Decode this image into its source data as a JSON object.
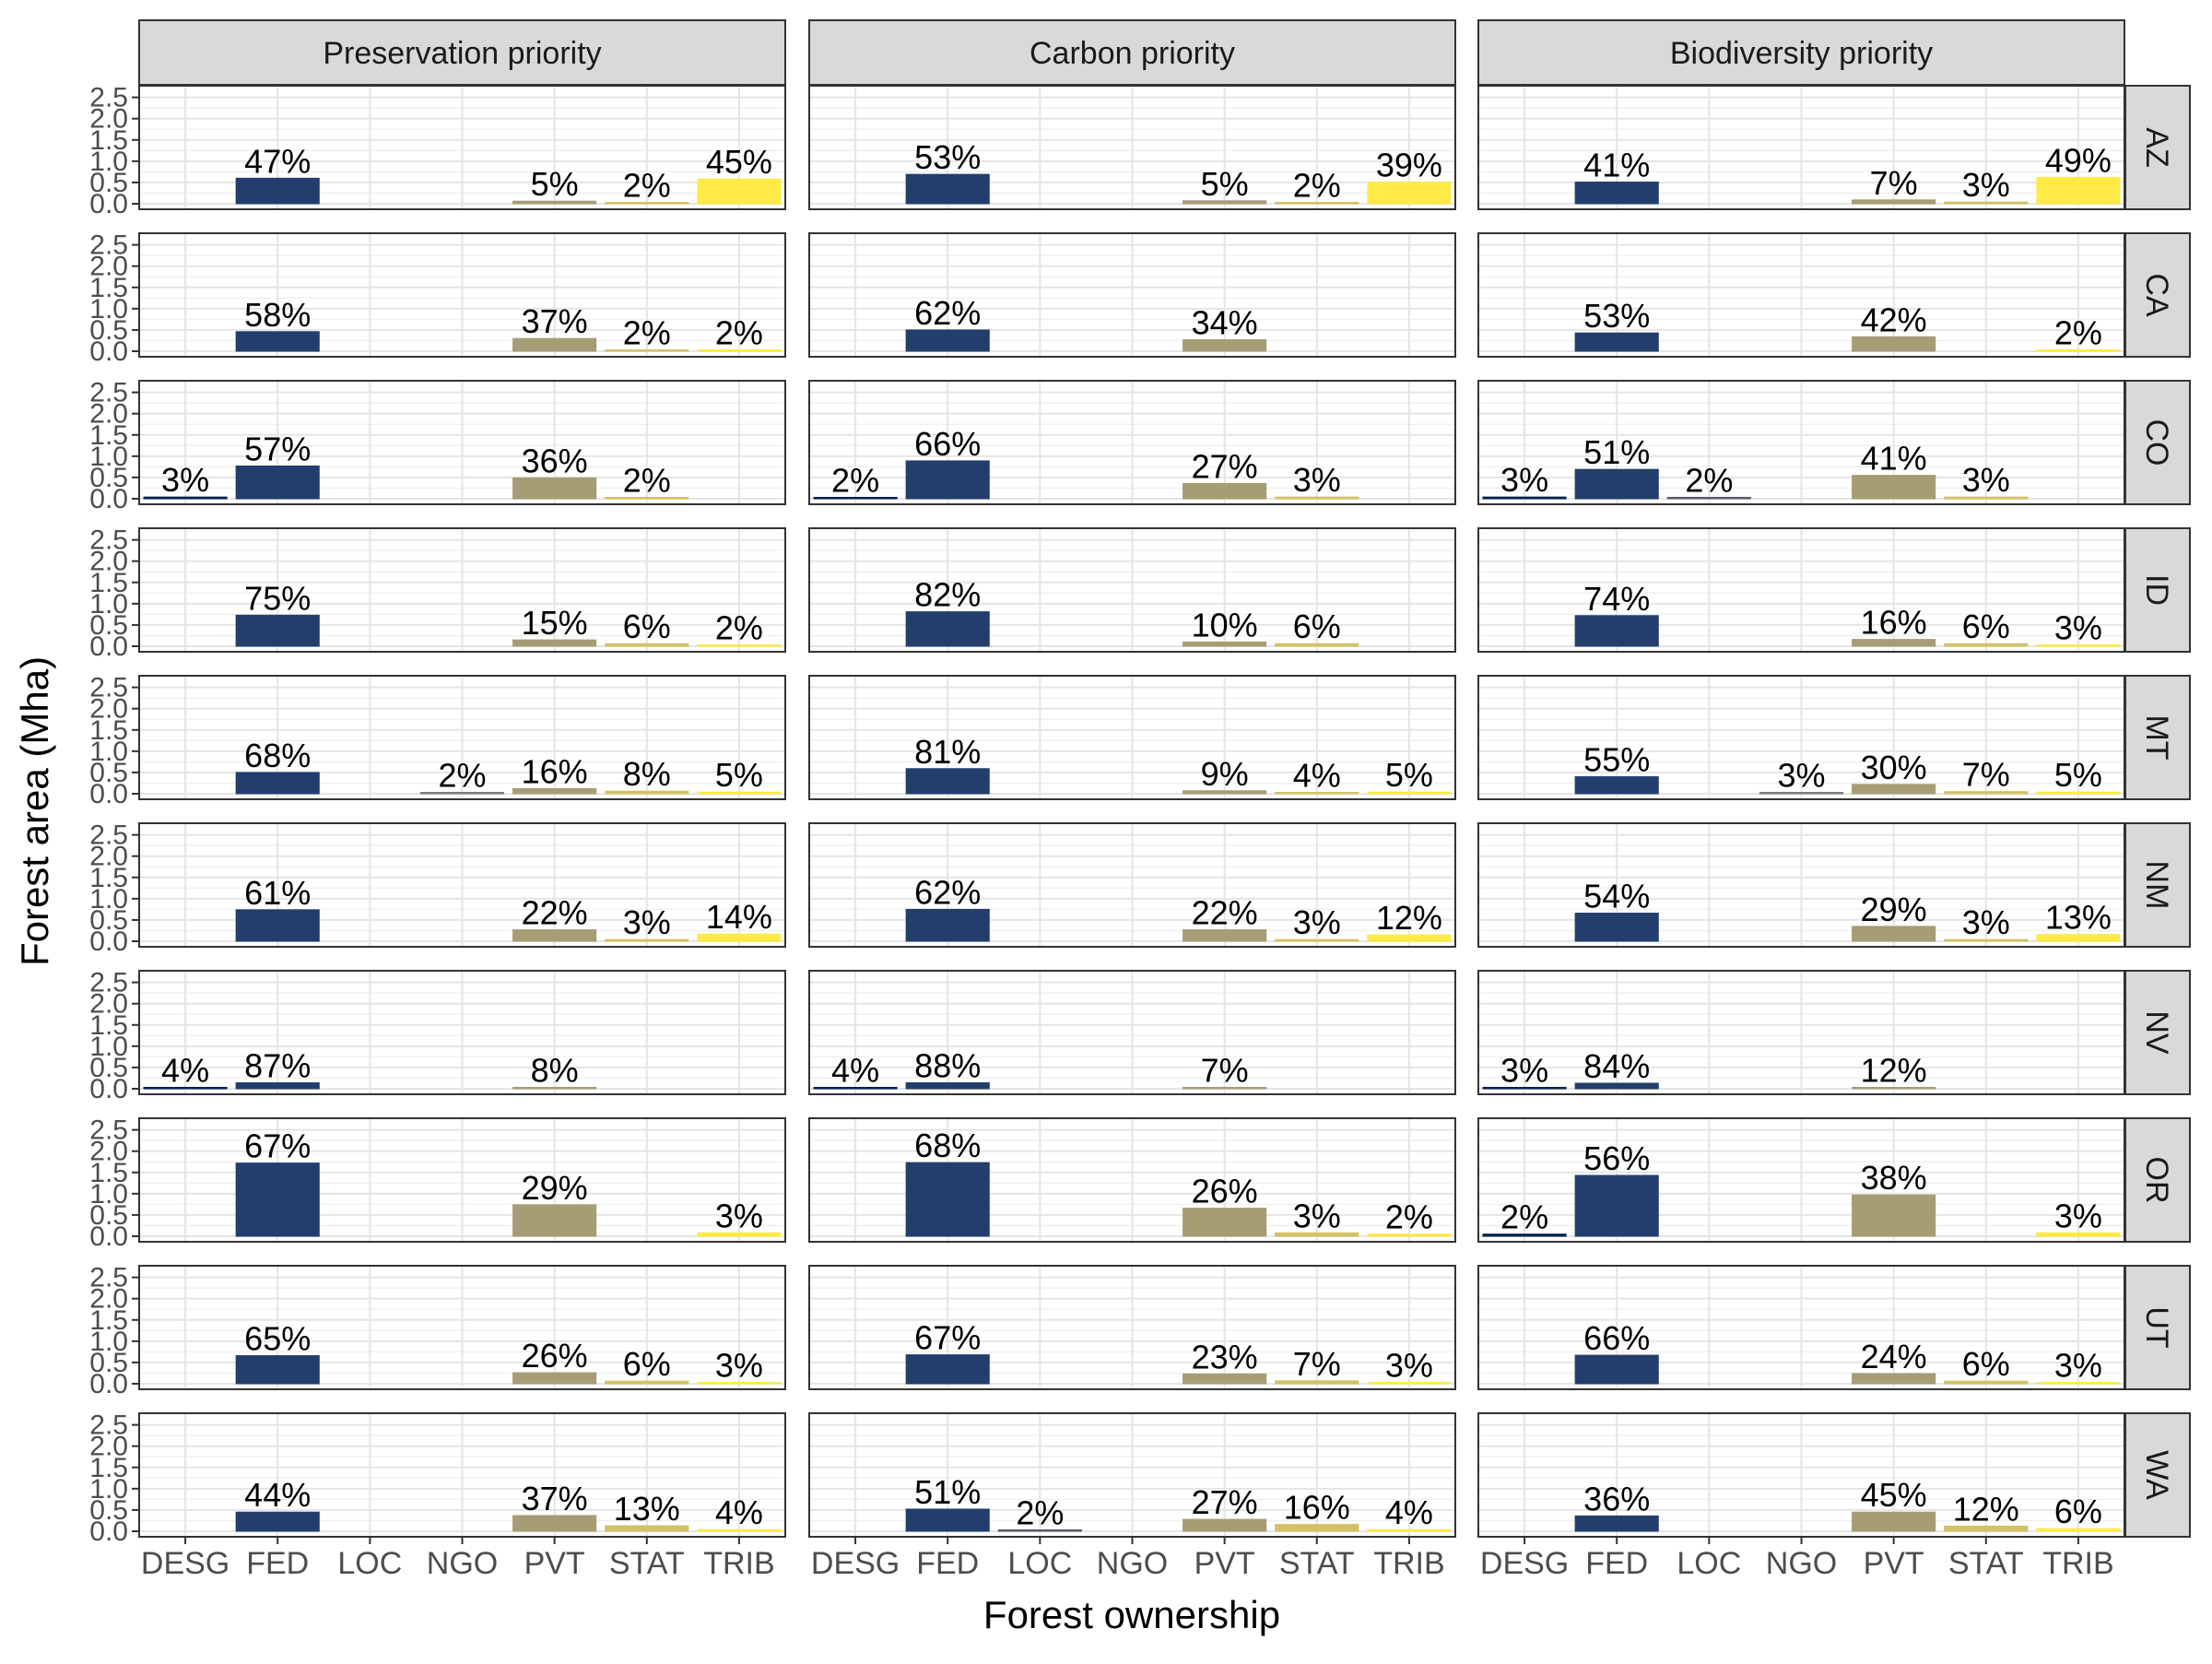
{
  "colors": {
    "DESG": "#00204D",
    "FED": "#233E6C",
    "LOC": "#575C6D",
    "NGO": "#7C7B78",
    "PVT": "#A69D75",
    "STAT": "#D3C164",
    "TRIB": "#FFEA46"
  },
  "chart_data": {
    "type": "bar",
    "xlabel": "Forest ownership",
    "ylabel": "Forest area (Mha)",
    "ylim": [
      0,
      2.6
    ],
    "yticks": [
      "0.0",
      "0.5",
      "1.0",
      "1.5",
      "2.0",
      "2.5"
    ],
    "categories": [
      "DESG",
      "FED",
      "LOC",
      "NGO",
      "PVT",
      "STAT",
      "TRIB"
    ],
    "grid": true,
    "columns": [
      "Preservation priority",
      "Carbon priority",
      "Biodiversity priority"
    ],
    "rows": [
      "AZ",
      "CA",
      "CO",
      "ID",
      "MT",
      "NM",
      "NV",
      "OR",
      "UT",
      "WA"
    ],
    "panels": [
      [
        [
          {
            "c": "FED",
            "v": 0.6,
            "l": "47%"
          },
          {
            "c": "PVT",
            "v": 0.06,
            "l": "5%"
          },
          {
            "c": "STAT",
            "v": 0.03,
            "l": "2%"
          },
          {
            "c": "TRIB",
            "v": 0.58,
            "l": "45%"
          }
        ],
        [
          {
            "c": "FED",
            "v": 0.69,
            "l": "53%"
          },
          {
            "c": "PVT",
            "v": 0.07,
            "l": "5%"
          },
          {
            "c": "STAT",
            "v": 0.03,
            "l": "2%"
          },
          {
            "c": "TRIB",
            "v": 0.51,
            "l": "39%"
          }
        ],
        [
          {
            "c": "FED",
            "v": 0.51,
            "l": "41%"
          },
          {
            "c": "PVT",
            "v": 0.09,
            "l": "7%"
          },
          {
            "c": "STAT",
            "v": 0.04,
            "l": "3%"
          },
          {
            "c": "TRIB",
            "v": 0.62,
            "l": "49%"
          }
        ]
      ],
      [
        [
          {
            "c": "FED",
            "v": 0.46,
            "l": "58%"
          },
          {
            "c": "PVT",
            "v": 0.3,
            "l": "37%"
          },
          {
            "c": "STAT",
            "v": 0.02,
            "l": "2%"
          },
          {
            "c": "TRIB",
            "v": 0.02,
            "l": "2%"
          }
        ],
        [
          {
            "c": "FED",
            "v": 0.5,
            "l": "62%"
          },
          {
            "c": "PVT",
            "v": 0.27,
            "l": "34%"
          }
        ],
        [
          {
            "c": "FED",
            "v": 0.43,
            "l": "53%"
          },
          {
            "c": "PVT",
            "v": 0.34,
            "l": "42%"
          },
          {
            "c": "TRIB",
            "v": 0.02,
            "l": "2%"
          }
        ]
      ],
      [
        [
          {
            "c": "DESG",
            "v": 0.04,
            "l": "3%"
          },
          {
            "c": "FED",
            "v": 0.77,
            "l": "57%"
          },
          {
            "c": "PVT",
            "v": 0.49,
            "l": "36%"
          },
          {
            "c": "STAT",
            "v": 0.03,
            "l": "2%"
          }
        ],
        [
          {
            "c": "DESG",
            "v": 0.03,
            "l": "2%"
          },
          {
            "c": "FED",
            "v": 0.89,
            "l": "66%"
          },
          {
            "c": "PVT",
            "v": 0.36,
            "l": "27%"
          },
          {
            "c": "STAT",
            "v": 0.04,
            "l": "3%"
          }
        ],
        [
          {
            "c": "DESG",
            "v": 0.04,
            "l": "3%"
          },
          {
            "c": "FED",
            "v": 0.69,
            "l": "51%"
          },
          {
            "c": "LOC",
            "v": 0.03,
            "l": "2%"
          },
          {
            "c": "PVT",
            "v": 0.55,
            "l": "41%"
          },
          {
            "c": "STAT",
            "v": 0.04,
            "l": "3%"
          }
        ]
      ],
      [
        [
          {
            "c": "FED",
            "v": 0.73,
            "l": "75%"
          },
          {
            "c": "PVT",
            "v": 0.15,
            "l": "15%"
          },
          {
            "c": "STAT",
            "v": 0.06,
            "l": "6%"
          },
          {
            "c": "TRIB",
            "v": 0.02,
            "l": "2%"
          }
        ],
        [
          {
            "c": "FED",
            "v": 0.81,
            "l": "82%"
          },
          {
            "c": "PVT",
            "v": 0.1,
            "l": "10%"
          },
          {
            "c": "STAT",
            "v": 0.06,
            "l": "6%"
          }
        ],
        [
          {
            "c": "FED",
            "v": 0.72,
            "l": "74%"
          },
          {
            "c": "PVT",
            "v": 0.16,
            "l": "16%"
          },
          {
            "c": "STAT",
            "v": 0.06,
            "l": "6%"
          },
          {
            "c": "TRIB",
            "v": 0.03,
            "l": "3%"
          }
        ]
      ],
      [
        [
          {
            "c": "FED",
            "v": 0.5,
            "l": "68%"
          },
          {
            "c": "NGO",
            "v": 0.015,
            "l": "2%"
          },
          {
            "c": "PVT",
            "v": 0.12,
            "l": "16%"
          },
          {
            "c": "STAT",
            "v": 0.06,
            "l": "8%"
          },
          {
            "c": "TRIB",
            "v": 0.04,
            "l": "5%"
          }
        ],
        [
          {
            "c": "FED",
            "v": 0.59,
            "l": "81%"
          },
          {
            "c": "PVT",
            "v": 0.07,
            "l": "9%"
          },
          {
            "c": "STAT",
            "v": 0.03,
            "l": "4%"
          },
          {
            "c": "TRIB",
            "v": 0.04,
            "l": "5%"
          }
        ],
        [
          {
            "c": "FED",
            "v": 0.4,
            "l": "55%"
          },
          {
            "c": "NGO",
            "v": 0.02,
            "l": "3%"
          },
          {
            "c": "PVT",
            "v": 0.22,
            "l": "30%"
          },
          {
            "c": "STAT",
            "v": 0.05,
            "l": "7%"
          },
          {
            "c": "TRIB",
            "v": 0.04,
            "l": "5%"
          }
        ]
      ],
      [
        [
          {
            "c": "FED",
            "v": 0.74,
            "l": "61%"
          },
          {
            "c": "PVT",
            "v": 0.27,
            "l": "22%"
          },
          {
            "c": "STAT",
            "v": 0.04,
            "l": "3%"
          },
          {
            "c": "TRIB",
            "v": 0.17,
            "l": "14%"
          }
        ],
        [
          {
            "c": "FED",
            "v": 0.75,
            "l": "62%"
          },
          {
            "c": "PVT",
            "v": 0.27,
            "l": "22%"
          },
          {
            "c": "STAT",
            "v": 0.04,
            "l": "3%"
          },
          {
            "c": "TRIB",
            "v": 0.15,
            "l": "12%"
          }
        ],
        [
          {
            "c": "FED",
            "v": 0.66,
            "l": "54%"
          },
          {
            "c": "PVT",
            "v": 0.35,
            "l": "29%"
          },
          {
            "c": "STAT",
            "v": 0.04,
            "l": "3%"
          },
          {
            "c": "TRIB",
            "v": 0.16,
            "l": "13%"
          }
        ]
      ],
      [
        [
          {
            "c": "DESG",
            "v": 0.01,
            "l": "4%"
          },
          {
            "c": "FED",
            "v": 0.14,
            "l": "87%"
          },
          {
            "c": "PVT",
            "v": 0.013,
            "l": "8%"
          }
        ],
        [
          {
            "c": "DESG",
            "v": 0.01,
            "l": "4%"
          },
          {
            "c": "FED",
            "v": 0.14,
            "l": "88%"
          },
          {
            "c": "PVT",
            "v": 0.011,
            "l": "7%"
          }
        ],
        [
          {
            "c": "DESG",
            "v": 0.01,
            "l": "3%"
          },
          {
            "c": "FED",
            "v": 0.13,
            "l": "84%"
          },
          {
            "c": "PVT",
            "v": 0.02,
            "l": "12%"
          }
        ]
      ],
      [
        [
          {
            "c": "FED",
            "v": 1.72,
            "l": "67%"
          },
          {
            "c": "PVT",
            "v": 0.74,
            "l": "29%"
          },
          {
            "c": "TRIB",
            "v": 0.08,
            "l": "3%"
          }
        ],
        [
          {
            "c": "FED",
            "v": 1.73,
            "l": "68%"
          },
          {
            "c": "PVT",
            "v": 0.66,
            "l": "26%"
          },
          {
            "c": "STAT",
            "v": 0.08,
            "l": "3%"
          },
          {
            "c": "TRIB",
            "v": 0.05,
            "l": "2%"
          }
        ],
        [
          {
            "c": "DESG",
            "v": 0.05,
            "l": "2%"
          },
          {
            "c": "FED",
            "v": 1.43,
            "l": "56%"
          },
          {
            "c": "PVT",
            "v": 0.97,
            "l": "38%"
          },
          {
            "c": "TRIB",
            "v": 0.08,
            "l": "3%"
          }
        ]
      ],
      [
        [
          {
            "c": "FED",
            "v": 0.66,
            "l": "65%"
          },
          {
            "c": "PVT",
            "v": 0.26,
            "l": "26%"
          },
          {
            "c": "STAT",
            "v": 0.06,
            "l": "6%"
          },
          {
            "c": "TRIB",
            "v": 0.03,
            "l": "3%"
          }
        ],
        [
          {
            "c": "FED",
            "v": 0.68,
            "l": "67%"
          },
          {
            "c": "PVT",
            "v": 0.23,
            "l": "23%"
          },
          {
            "c": "STAT",
            "v": 0.07,
            "l": "7%"
          },
          {
            "c": "TRIB",
            "v": 0.03,
            "l": "3%"
          }
        ],
        [
          {
            "c": "FED",
            "v": 0.67,
            "l": "66%"
          },
          {
            "c": "PVT",
            "v": 0.24,
            "l": "24%"
          },
          {
            "c": "STAT",
            "v": 0.06,
            "l": "6%"
          },
          {
            "c": "TRIB",
            "v": 0.03,
            "l": "3%"
          }
        ]
      ],
      [
        [
          {
            "c": "FED",
            "v": 0.45,
            "l": "44%"
          },
          {
            "c": "PVT",
            "v": 0.37,
            "l": "37%"
          },
          {
            "c": "STAT",
            "v": 0.13,
            "l": "13%"
          },
          {
            "c": "TRIB",
            "v": 0.04,
            "l": "4%"
          }
        ],
        [
          {
            "c": "FED",
            "v": 0.52,
            "l": "51%"
          },
          {
            "c": "LOC",
            "v": 0.02,
            "l": "2%"
          },
          {
            "c": "PVT",
            "v": 0.28,
            "l": "27%"
          },
          {
            "c": "STAT",
            "v": 0.16,
            "l": "16%"
          },
          {
            "c": "TRIB",
            "v": 0.04,
            "l": "4%"
          }
        ],
        [
          {
            "c": "FED",
            "v": 0.36,
            "l": "36%"
          },
          {
            "c": "PVT",
            "v": 0.45,
            "l": "45%"
          },
          {
            "c": "STAT",
            "v": 0.12,
            "l": "12%"
          },
          {
            "c": "TRIB",
            "v": 0.06,
            "l": "6%"
          }
        ]
      ]
    ]
  }
}
